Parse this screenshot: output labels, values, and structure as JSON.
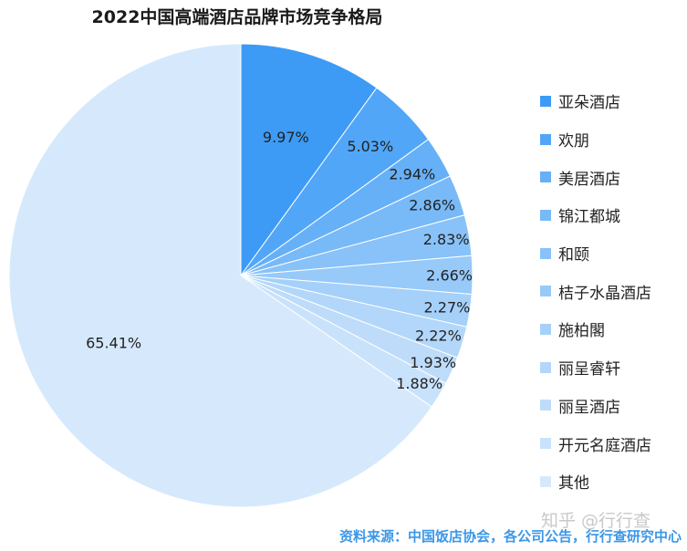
{
  "chart_data": {
    "type": "pie",
    "title": "2022中国高端酒店品牌市场竞争格局",
    "legend_position": "right",
    "slices": [
      {
        "name": "亚朵酒店",
        "value": 9.97,
        "label": "9.97%",
        "color": "#3d9bf6"
      },
      {
        "name": "欢朋",
        "value": 5.03,
        "label": "5.03%",
        "color": "#52a6f7"
      },
      {
        "name": "美居酒店",
        "value": 2.94,
        "label": "2.94%",
        "color": "#66b0f7"
      },
      {
        "name": "锦江都城",
        "value": 2.86,
        "label": "2.86%",
        "color": "#78b9f8"
      },
      {
        "name": "和颐",
        "value": 2.83,
        "label": "2.83%",
        "color": "#88c2f8"
      },
      {
        "name": "桔子水晶酒店",
        "value": 2.66,
        "label": "2.66%",
        "color": "#97c9f9"
      },
      {
        "name": "施柏閣",
        "value": 2.27,
        "label": "2.27%",
        "color": "#a5d0f9"
      },
      {
        "name": "丽呈睿轩",
        "value": 2.22,
        "label": "2.22%",
        "color": "#b2d7fa"
      },
      {
        "name": "丽呈酒店",
        "value": 1.93,
        "label": "1.93%",
        "color": "#bedcfa"
      },
      {
        "name": "开元名庭酒店",
        "value": 1.88,
        "label": "1.88%",
        "color": "#c9e2fb"
      },
      {
        "name": "其他",
        "value": 65.41,
        "label": "65.41%",
        "color": "#d6e9fc"
      }
    ]
  },
  "source": "资料来源：中国饭店协会，各公司公告，行行查研究中心",
  "watermark": "知乎 @行行查"
}
